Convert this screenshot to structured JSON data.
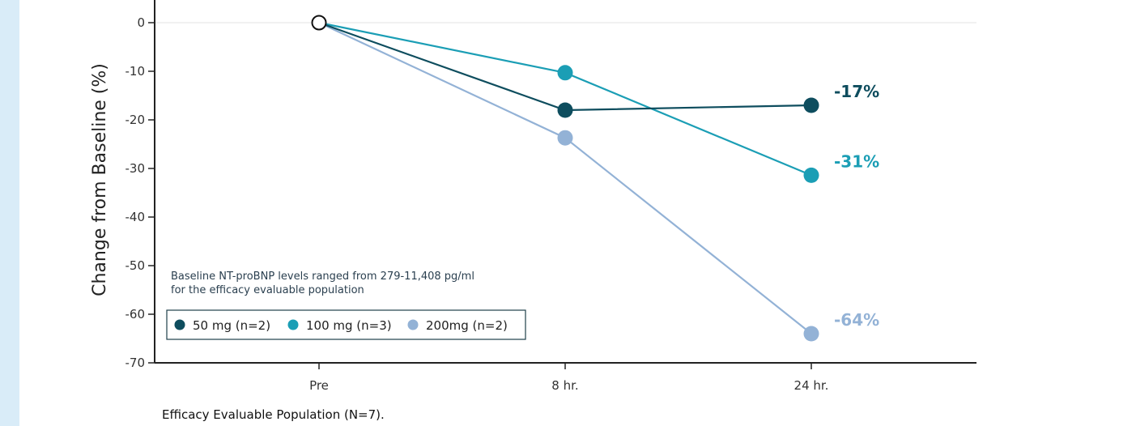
{
  "chart_data": {
    "type": "line",
    "title": "",
    "xlabel": "",
    "ylabel": "Change from Baseline (%)",
    "categories": [
      "Pre",
      "8 hr.",
      "24 hr."
    ],
    "ylim": [
      -70,
      0
    ],
    "yticks": [
      0,
      -10,
      -20,
      -30,
      -40,
      -50,
      -60,
      -70
    ],
    "grid": "zero-line only",
    "series": [
      {
        "name": "50 mg (n=2)",
        "values": [
          0,
          -18,
          -17
        ],
        "color": "#0e4d5e",
        "end_label": "-17%"
      },
      {
        "name": "100 mg (n=3)",
        "values": [
          0,
          -10.3,
          -31.4
        ],
        "color": "#1b9eb5",
        "end_label": "-31%"
      },
      {
        "name": "200mg (n=2)",
        "values": [
          0,
          -23.7,
          -64
        ],
        "color": "#93b2d6",
        "end_label": "-64%"
      }
    ],
    "annotation_lines": [
      "Baseline NT-proBNP levels ranged from 279-11,408 pg/ml",
      "for the efficacy evaluable population"
    ],
    "legend_position": "bottom-left"
  },
  "caption": "Efficacy Evaluable Population (N=7)."
}
